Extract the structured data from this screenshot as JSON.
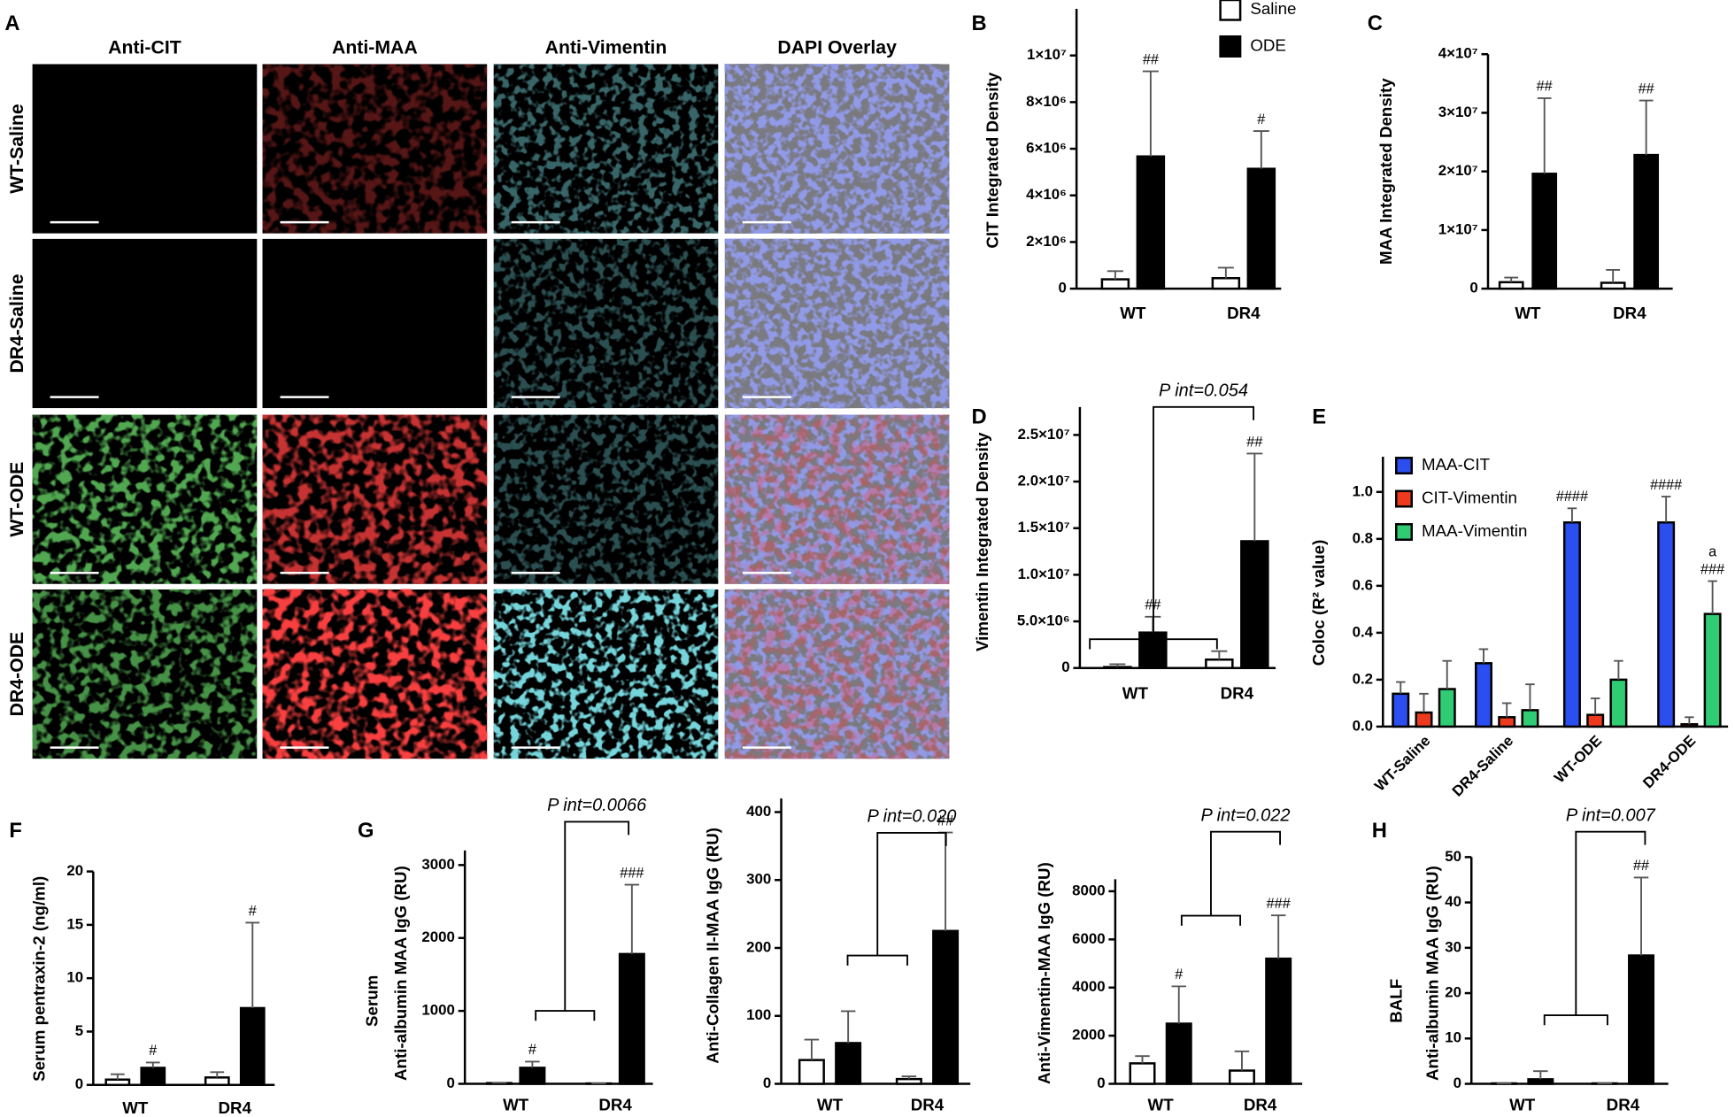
{
  "panel_a": {
    "label": "A",
    "columns": [
      "Anti-CIT",
      "Anti-MAA",
      "Anti-Vimentin",
      "DAPI Overlay"
    ],
    "rows": [
      "WT-Saline",
      "DR4-Saline",
      "WT-ODE",
      "DR4-ODE"
    ]
  },
  "chart_data": [
    {
      "type": "bar",
      "panel": "B",
      "ylabel": "CIT Integrated Density",
      "categories": [
        "WT",
        "DR4"
      ],
      "legend": "top",
      "series": [
        {
          "name": "Saline",
          "color": "#ffffff",
          "values": [
            400000,
            450000
          ],
          "errors": [
            350000,
            450000
          ]
        },
        {
          "name": "ODE",
          "color": "#000000",
          "values": [
            5670000,
            5140000
          ],
          "errors": [
            3650000,
            1620000
          ],
          "annotations": [
            "##",
            "#"
          ]
        }
      ],
      "ylim": [
        0,
        12000000
      ],
      "yticks": [
        0,
        {
          "value": 2000000,
          "label": "2×10⁶"
        },
        {
          "value": 4000000,
          "label": "4×10⁶"
        },
        {
          "value": 6000000,
          "label": "6×10⁶"
        },
        {
          "value": 8000000,
          "label": "8×10⁶"
        },
        {
          "value": 10000000,
          "label": "1×10⁷"
        }
      ]
    },
    {
      "type": "bar",
      "panel": "C",
      "ylabel": "MAA Integrated Density",
      "categories": [
        "WT",
        "DR4"
      ],
      "series": [
        {
          "name": "Saline",
          "color": "#ffffff",
          "values": [
            1100000,
            1000000
          ],
          "errors": [
            800000,
            2200000
          ]
        },
        {
          "name": "ODE",
          "color": "#000000",
          "values": [
            19600000,
            22800000
          ],
          "errors": [
            12900000,
            9300000
          ],
          "annotations": [
            "##",
            "##"
          ]
        }
      ],
      "ylim": [
        0,
        40000000
      ],
      "yticks": [
        0,
        {
          "value": 10000000,
          "label": "1×10⁷"
        },
        {
          "value": 20000000,
          "label": "2×10⁷"
        },
        {
          "value": 30000000,
          "label": "3×10⁷"
        },
        {
          "value": 40000000,
          "label": "4×10⁷"
        }
      ]
    },
    {
      "type": "bar",
      "panel": "D",
      "ylabel": "Vimentin Integrated Density",
      "categories": [
        "WT",
        "DR4"
      ],
      "interaction": "P int=0.054",
      "series": [
        {
          "name": "Saline",
          "color": "#ffffff",
          "values": [
            100000,
            900000
          ],
          "errors": [
            300000,
            900000
          ]
        },
        {
          "name": "ODE",
          "color": "#000000",
          "values": [
            3800000,
            13600000
          ],
          "errors": [
            1700000,
            9400000
          ],
          "annotations": [
            "##",
            "##"
          ]
        }
      ],
      "ylim": [
        0,
        28000000
      ],
      "yticks": [
        0,
        {
          "value": 5000000,
          "label": "5.0×10⁶"
        },
        {
          "value": 10000000,
          "label": "1.0×10⁷"
        },
        {
          "value": 15000000,
          "label": "1.5×10⁷"
        },
        {
          "value": 20000000,
          "label": "2.0×10⁷"
        },
        {
          "value": 25000000,
          "label": "2.5×10⁷"
        }
      ]
    },
    {
      "type": "bar",
      "panel": "E",
      "ylabel": "Coloc (R² value)",
      "categories": [
        "WT-Saline",
        "DR4-Saline",
        "WT-ODE",
        "DR4-ODE"
      ],
      "legend": "upper-left",
      "series": [
        {
          "name": "MAA-CIT",
          "color": "#2b4ef0",
          "values": [
            0.14,
            0.27,
            0.87,
            0.87
          ],
          "errors": [
            0.05,
            0.06,
            0.06,
            0.11
          ],
          "annotations": [
            null,
            null,
            "####",
            "####"
          ]
        },
        {
          "name": "CIT-Vimentin",
          "color": "#ee3a1c",
          "values": [
            0.06,
            0.04,
            0.05,
            0.01
          ],
          "errors": [
            0.08,
            0.06,
            0.07,
            0.03
          ]
        },
        {
          "name": "MAA-Vimentin",
          "color": "#2fcc74",
          "values": [
            0.16,
            0.07,
            0.2,
            0.48
          ],
          "errors": [
            0.12,
            0.11,
            0.08,
            0.14
          ],
          "annotations": [
            null,
            null,
            null,
            [
              "a",
              "###"
            ]
          ]
        }
      ],
      "ylim": [
        0,
        1.15
      ],
      "yticks": [
        {
          "value": 0,
          "label": "0.0"
        },
        0.2,
        0.4,
        0.6,
        0.8,
        {
          "value": 1,
          "label": "1.0"
        }
      ]
    },
    {
      "type": "bar",
      "panel": "F",
      "ylabel": "Serum pentraxin-2 (ng/ml)",
      "categories": [
        "WT",
        "DR4"
      ],
      "series": [
        {
          "name": "Saline",
          "color": "#ffffff",
          "values": [
            0.5,
            0.7
          ],
          "errors": [
            0.5,
            0.5
          ]
        },
        {
          "name": "ODE",
          "color": "#000000",
          "values": [
            1.6,
            7.2
          ],
          "errors": [
            0.5,
            8.0
          ],
          "annotations": [
            "#",
            "#"
          ]
        }
      ],
      "ylim": [
        0,
        20
      ],
      "yticks": [
        0,
        5,
        10,
        15,
        20
      ]
    },
    {
      "type": "bar",
      "panel": "G",
      "ylabel_group": "Serum",
      "ylabel": "Anti-albumin MAA IgG (RU)",
      "categories": [
        "WT",
        "DR4"
      ],
      "interaction": "P int=0.0066",
      "series": [
        {
          "name": "Saline",
          "color": "#ffffff",
          "values": [
            10,
            5
          ],
          "errors": [
            5,
            0
          ]
        },
        {
          "name": "ODE",
          "color": "#000000",
          "values": [
            220,
            1780
          ],
          "errors": [
            85,
            950
          ],
          "annotations": [
            "#",
            "###"
          ]
        }
      ],
      "ylim": [
        0,
        3200
      ],
      "yticks": [
        0,
        1000,
        2000,
        3000
      ]
    },
    {
      "type": "bar",
      "ylabel": "Anti-Collagen II-MAA IgG (RU)",
      "categories": [
        "WT",
        "DR4"
      ],
      "interaction": "P int=0.020",
      "series": [
        {
          "name": "Saline",
          "color": "#ffffff",
          "values": [
            35,
            7
          ],
          "errors": [
            30,
            4
          ]
        },
        {
          "name": "ODE",
          "color": "#000000",
          "values": [
            60,
            225
          ],
          "errors": [
            47,
            145
          ],
          "annotations": [
            null,
            "##"
          ]
        }
      ],
      "ylim": [
        0,
        420
      ],
      "yticks": [
        0,
        100,
        200,
        300,
        400
      ]
    },
    {
      "type": "bar",
      "ylabel": "Anti-Vimentin-MAA IgG (RU)",
      "categories": [
        "WT",
        "DR4"
      ],
      "interaction": "P int=0.022",
      "series": [
        {
          "name": "Saline",
          "color": "#ffffff",
          "values": [
            850,
            550
          ],
          "errors": [
            300,
            800
          ]
        },
        {
          "name": "ODE",
          "color": "#000000",
          "values": [
            2500,
            5200
          ],
          "errors": [
            1550,
            1800
          ],
          "annotations": [
            "#",
            "###"
          ]
        }
      ],
      "ylim": [
        0,
        8500
      ],
      "yticks": [
        0,
        2000,
        4000,
        6000,
        8000
      ]
    },
    {
      "type": "bar",
      "panel": "H",
      "ylabel_group": "BALF",
      "ylabel": "Anti-albumin MAA IgG (RU)",
      "categories": [
        "WT",
        "DR4"
      ],
      "interaction": "P int=0.007",
      "series": [
        {
          "name": "Saline",
          "color": "#ffffff",
          "values": [
            0.1,
            0.1
          ],
          "errors": [
            0,
            0
          ]
        },
        {
          "name": "ODE",
          "color": "#000000",
          "values": [
            1,
            28.3
          ],
          "errors": [
            1.8,
            17.2
          ],
          "annotations": [
            null,
            "##"
          ]
        }
      ],
      "ylim": [
        0,
        50
      ],
      "yticks": [
        0,
        10,
        20,
        30,
        40,
        50
      ]
    }
  ]
}
